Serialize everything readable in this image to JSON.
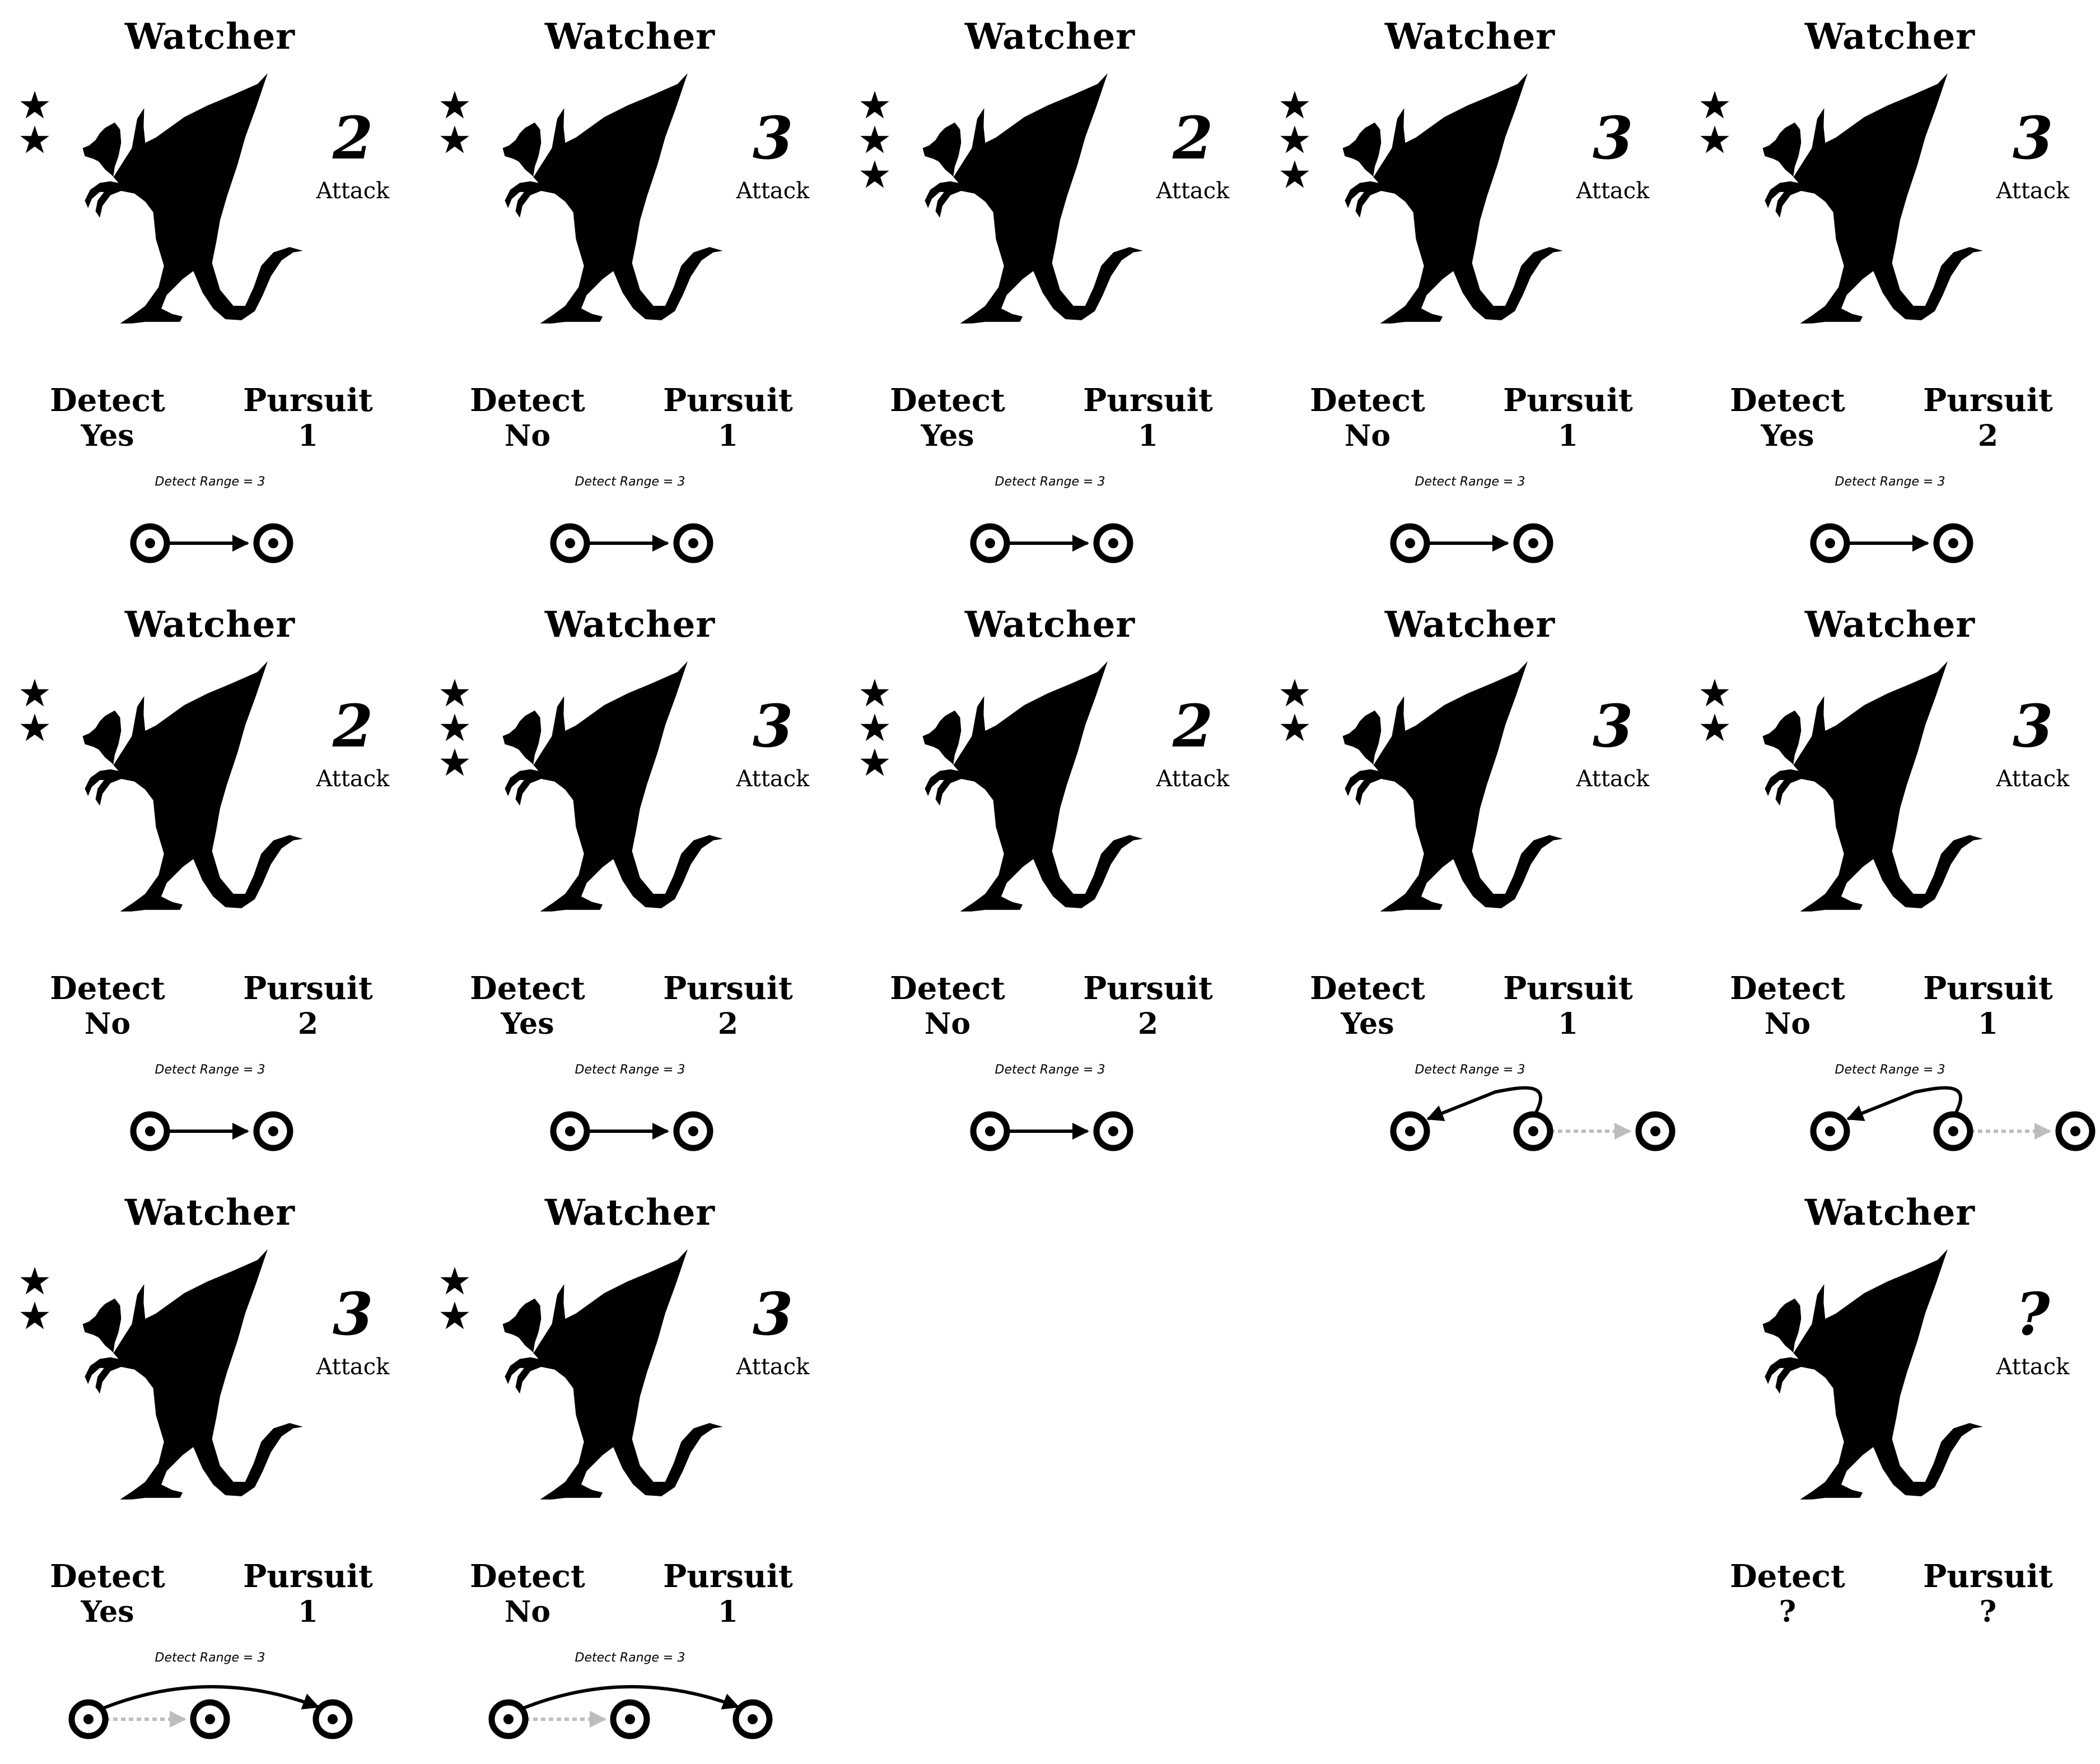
{
  "card_title": "Watcher",
  "attack_label": "Attack",
  "detect_label": "Detect",
  "pursuit_label": "Pursuit",
  "range_note": "Detect Range = 3",
  "icons": {
    "creature": "dragon-silhouette-icon",
    "star": "star-icon",
    "node": "target-node-icon",
    "arrow": "movement-arrow-icon"
  },
  "colors": {
    "ink": "#000000",
    "ghost_arrow": "#bdbdbd",
    "background": "#ffffff"
  },
  "cards": [
    {
      "stars": 2,
      "attack": "2",
      "detect": "Yes",
      "pursuit": "1",
      "move": "straight"
    },
    {
      "stars": 2,
      "attack": "3",
      "detect": "No",
      "pursuit": "1",
      "move": "straight"
    },
    {
      "stars": 3,
      "attack": "2",
      "detect": "Yes",
      "pursuit": "1",
      "move": "straight"
    },
    {
      "stars": 3,
      "attack": "3",
      "detect": "No",
      "pursuit": "1",
      "move": "straight"
    },
    {
      "stars": 2,
      "attack": "3",
      "detect": "Yes",
      "pursuit": "2",
      "move": "straight"
    },
    {
      "stars": 2,
      "attack": "2",
      "detect": "No",
      "pursuit": "2",
      "move": "straight"
    },
    {
      "stars": 3,
      "attack": "3",
      "detect": "Yes",
      "pursuit": "2",
      "move": "straight"
    },
    {
      "stars": 3,
      "attack": "2",
      "detect": "No",
      "pursuit": "2",
      "move": "straight"
    },
    {
      "stars": 2,
      "attack": "3",
      "detect": "Yes",
      "pursuit": "1",
      "move": "back"
    },
    {
      "stars": 2,
      "attack": "3",
      "detect": "No",
      "pursuit": "1",
      "move": "back"
    },
    {
      "stars": 2,
      "attack": "3",
      "detect": "Yes",
      "pursuit": "1",
      "move": "jump"
    },
    {
      "stars": 2,
      "attack": "3",
      "detect": "No",
      "pursuit": "1",
      "move": "jump"
    },
    {
      "stars": 0,
      "attack": "?",
      "detect": "?",
      "pursuit": "?",
      "move": "none"
    }
  ]
}
